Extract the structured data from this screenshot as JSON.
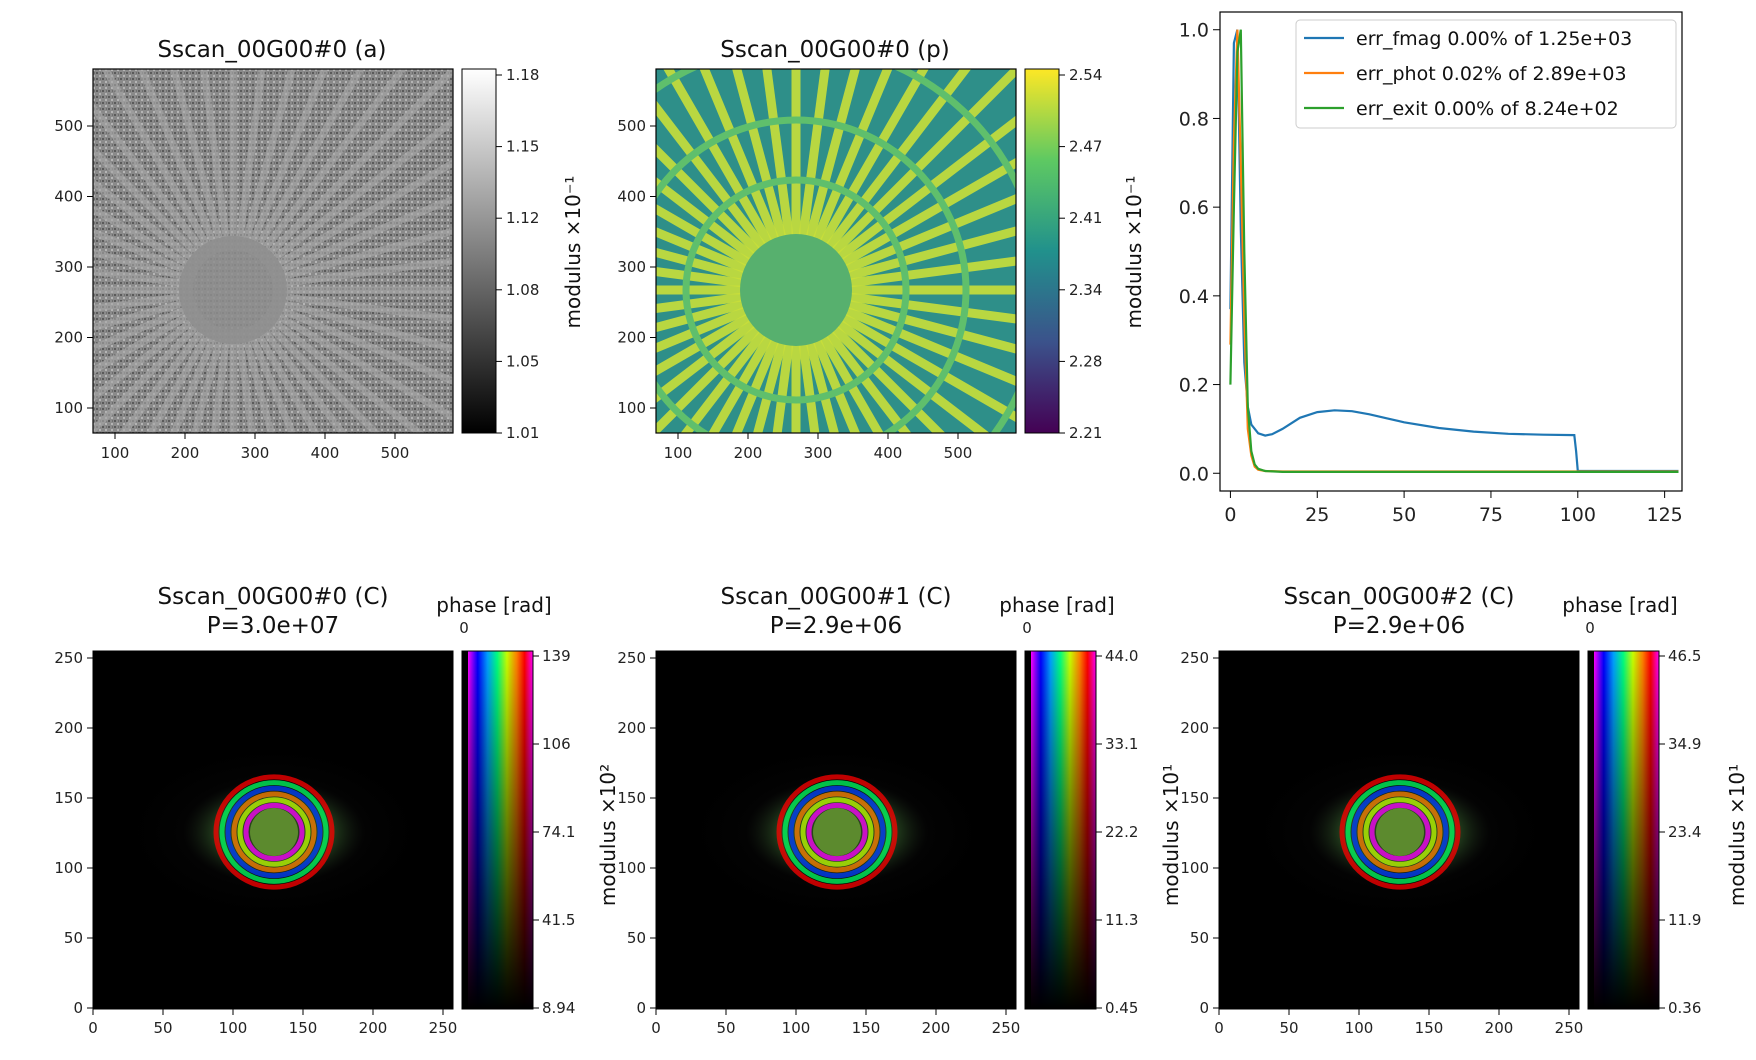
{
  "panels": {
    "amp": {
      "title": "Sscan_00G00#0 (a)",
      "cbar_label": "modulus ×10⁻¹",
      "cbar_ticks": [
        "1.18",
        "1.15",
        "1.12",
        "1.08",
        "1.05",
        "1.01"
      ],
      "xticks": [
        "100",
        "200",
        "300",
        "400",
        "500"
      ],
      "yticks": [
        "500",
        "400",
        "300",
        "200",
        "100"
      ]
    },
    "phase": {
      "title": "Sscan_00G00#0 (p)",
      "cbar_label": "modulus ×10⁻¹",
      "cbar_ticks": [
        "2.54",
        "2.47",
        "2.41",
        "2.34",
        "2.28",
        "2.21"
      ],
      "xticks": [
        "100",
        "200",
        "300",
        "400",
        "500"
      ],
      "yticks": [
        "500",
        "400",
        "300",
        "200",
        "100"
      ]
    },
    "probe0": {
      "title1": "Sscan_00G00#0 (C)",
      "title2": "P=3.0e+07",
      "phase_label": "phase [rad]",
      "phase_zero": "0",
      "cbar_ticks": [
        "139",
        "106",
        "74.1",
        "41.5",
        "8.94"
      ],
      "side_label": "modulus ×10²"
    },
    "probe1": {
      "title1": "Sscan_00G00#1 (C)",
      "title2": "P=2.9e+06",
      "phase_label": "phase [rad]",
      "phase_zero": "0",
      "cbar_ticks": [
        "44.0",
        "33.1",
        "22.2",
        "11.3",
        "0.45"
      ],
      "side_label": "modulus ×10¹"
    },
    "probe2": {
      "title1": "Sscan_00G00#2 (C)",
      "title2": "P=2.9e+06",
      "phase_label": "phase [rad]",
      "phase_zero": "0",
      "cbar_ticks": [
        "46.5",
        "34.9",
        "23.4",
        "11.9",
        "0.36"
      ],
      "side_label": "modulus ×10¹"
    },
    "probe_xticks": [
      "0",
      "50",
      "100",
      "150",
      "200",
      "250"
    ],
    "probe_yticks": [
      "250",
      "200",
      "150",
      "100",
      "50",
      "0"
    ]
  },
  "chart_data": {
    "type": "line",
    "xlim": [
      -3,
      130
    ],
    "ylim": [
      -0.04,
      1.04
    ],
    "xticks": [
      "0",
      "25",
      "50",
      "75",
      "100",
      "125"
    ],
    "yticks": [
      "1.0",
      "0.8",
      "0.6",
      "0.4",
      "0.2",
      "0.0"
    ],
    "legend_position": "top-right",
    "series": [
      {
        "name": "err_fmag 0.00% of 1.25e+03",
        "color": "#1f77b4",
        "x": [
          0,
          1,
          2,
          3,
          4,
          5,
          6,
          8,
          10,
          12,
          15,
          20,
          25,
          30,
          35,
          40,
          45,
          50,
          60,
          70,
          80,
          90,
          99,
          99.5,
          100,
          110,
          120,
          129
        ],
        "y": [
          0.37,
          0.97,
          1.0,
          0.55,
          0.25,
          0.15,
          0.11,
          0.09,
          0.085,
          0.088,
          0.1,
          0.125,
          0.138,
          0.142,
          0.14,
          0.133,
          0.124,
          0.115,
          0.102,
          0.094,
          0.089,
          0.087,
          0.086,
          0.05,
          0.005,
          0.005,
          0.005,
          0.005
        ]
      },
      {
        "name": "err_phot 0.02% of 2.89e+03",
        "color": "#ff7f0e",
        "x": [
          0,
          1,
          2,
          3,
          4,
          5,
          6,
          7,
          8,
          10,
          15,
          20,
          40,
          60,
          80,
          100,
          129
        ],
        "y": [
          0.29,
          0.75,
          1.0,
          0.7,
          0.35,
          0.1,
          0.04,
          0.015,
          0.008,
          0.005,
          0.004,
          0.004,
          0.004,
          0.004,
          0.004,
          0.004,
          0.004
        ]
      },
      {
        "name": "err_exit 0.00% of 8.24e+02",
        "color": "#2ca02c",
        "x": [
          0,
          1,
          2,
          3,
          4,
          5,
          6,
          7,
          8,
          10,
          15,
          20,
          40,
          60,
          80,
          100,
          129
        ],
        "y": [
          0.2,
          0.6,
          0.95,
          1.0,
          0.5,
          0.15,
          0.05,
          0.02,
          0.01,
          0.005,
          0.003,
          0.003,
          0.003,
          0.003,
          0.003,
          0.003,
          0.003
        ]
      }
    ]
  }
}
